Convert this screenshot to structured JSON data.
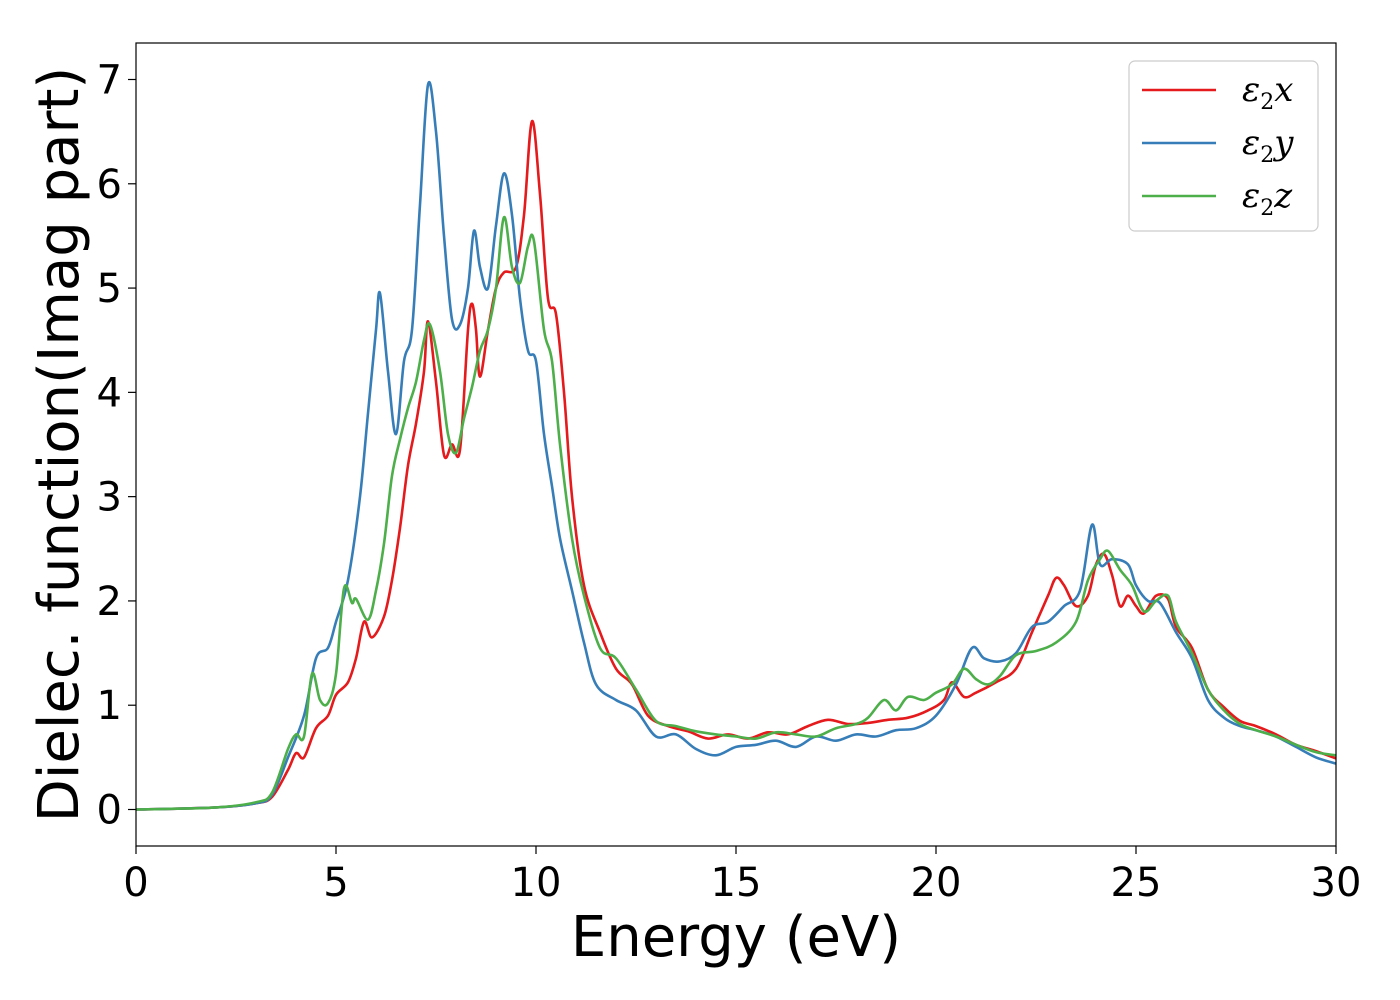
{
  "chart_data": {
    "type": "line",
    "title": "",
    "xlabel": "Energy (eV)",
    "ylabel": "Dielec. function(Imag part)",
    "xlim": [
      0,
      30
    ],
    "ylim": [
      -0.35,
      7.35
    ],
    "xticks": [
      0,
      5,
      10,
      15,
      20,
      25,
      30
    ],
    "yticks": [
      0,
      1,
      2,
      3,
      4,
      5,
      6,
      7
    ],
    "grid": false,
    "legend_position": "top-right",
    "series": [
      {
        "name": "ε₂x",
        "legend_symbol": "ε",
        "legend_sub": "2",
        "legend_suffix": "x",
        "color": "#e41a1c",
        "points": [
          [
            0,
            0
          ],
          [
            2,
            0.02
          ],
          [
            3,
            0.06
          ],
          [
            3.4,
            0.12
          ],
          [
            3.8,
            0.38
          ],
          [
            4.0,
            0.54
          ],
          [
            4.2,
            0.5
          ],
          [
            4.5,
            0.78
          ],
          [
            4.8,
            0.9
          ],
          [
            5.0,
            1.1
          ],
          [
            5.3,
            1.22
          ],
          [
            5.5,
            1.45
          ],
          [
            5.7,
            1.8
          ],
          [
            5.9,
            1.65
          ],
          [
            6.2,
            1.85
          ],
          [
            6.4,
            2.2
          ],
          [
            6.6,
            2.7
          ],
          [
            6.8,
            3.3
          ],
          [
            7.0,
            3.7
          ],
          [
            7.2,
            4.2
          ],
          [
            7.3,
            4.68
          ],
          [
            7.5,
            4.1
          ],
          [
            7.7,
            3.4
          ],
          [
            7.9,
            3.5
          ],
          [
            8.1,
            3.45
          ],
          [
            8.3,
            4.6
          ],
          [
            8.4,
            4.85
          ],
          [
            8.5,
            4.6
          ],
          [
            8.6,
            4.15
          ],
          [
            8.8,
            4.6
          ],
          [
            9.0,
            5.0
          ],
          [
            9.2,
            5.15
          ],
          [
            9.5,
            5.2
          ],
          [
            9.7,
            5.7
          ],
          [
            9.9,
            6.6
          ],
          [
            10.1,
            5.9
          ],
          [
            10.3,
            4.9
          ],
          [
            10.5,
            4.75
          ],
          [
            10.7,
            4.0
          ],
          [
            10.9,
            3.0
          ],
          [
            11.2,
            2.15
          ],
          [
            11.6,
            1.7
          ],
          [
            12.0,
            1.35
          ],
          [
            12.4,
            1.2
          ],
          [
            12.8,
            0.9
          ],
          [
            13.3,
            0.8
          ],
          [
            13.8,
            0.75
          ],
          [
            14.3,
            0.68
          ],
          [
            14.8,
            0.72
          ],
          [
            15.3,
            0.68
          ],
          [
            15.8,
            0.74
          ],
          [
            16.3,
            0.72
          ],
          [
            16.8,
            0.8
          ],
          [
            17.3,
            0.86
          ],
          [
            17.8,
            0.82
          ],
          [
            18.3,
            0.83
          ],
          [
            18.8,
            0.86
          ],
          [
            19.3,
            0.88
          ],
          [
            19.8,
            0.95
          ],
          [
            20.2,
            1.05
          ],
          [
            20.4,
            1.22
          ],
          [
            20.7,
            1.08
          ],
          [
            21.0,
            1.12
          ],
          [
            21.5,
            1.22
          ],
          [
            22.0,
            1.35
          ],
          [
            22.4,
            1.7
          ],
          [
            22.8,
            2.05
          ],
          [
            23.0,
            2.22
          ],
          [
            23.2,
            2.15
          ],
          [
            23.5,
            1.95
          ],
          [
            23.8,
            2.05
          ],
          [
            24.0,
            2.35
          ],
          [
            24.2,
            2.45
          ],
          [
            24.4,
            2.25
          ],
          [
            24.6,
            1.95
          ],
          [
            24.8,
            2.05
          ],
          [
            25.0,
            1.95
          ],
          [
            25.2,
            1.88
          ],
          [
            25.5,
            2.05
          ],
          [
            25.8,
            2.02
          ],
          [
            26.0,
            1.75
          ],
          [
            26.4,
            1.55
          ],
          [
            26.8,
            1.15
          ],
          [
            27.2,
            0.98
          ],
          [
            27.6,
            0.85
          ],
          [
            28.0,
            0.8
          ],
          [
            28.5,
            0.72
          ],
          [
            29.0,
            0.62
          ],
          [
            29.5,
            0.56
          ],
          [
            30.0,
            0.49
          ]
        ]
      },
      {
        "name": "ε₂y",
        "legend_symbol": "ε",
        "legend_sub": "2",
        "legend_suffix": "y",
        "color": "#377eb8",
        "points": [
          [
            0,
            0
          ],
          [
            2,
            0.02
          ],
          [
            3,
            0.06
          ],
          [
            3.4,
            0.14
          ],
          [
            3.8,
            0.5
          ],
          [
            4.2,
            0.9
          ],
          [
            4.5,
            1.45
          ],
          [
            4.8,
            1.55
          ],
          [
            5.0,
            1.8
          ],
          [
            5.3,
            2.2
          ],
          [
            5.6,
            3.0
          ],
          [
            5.8,
            3.8
          ],
          [
            6.0,
            4.6
          ],
          [
            6.1,
            4.95
          ],
          [
            6.3,
            4.2
          ],
          [
            6.5,
            3.6
          ],
          [
            6.7,
            4.3
          ],
          [
            6.9,
            4.6
          ],
          [
            7.1,
            5.8
          ],
          [
            7.3,
            6.95
          ],
          [
            7.5,
            6.5
          ],
          [
            7.7,
            5.5
          ],
          [
            7.9,
            4.7
          ],
          [
            8.1,
            4.65
          ],
          [
            8.3,
            5.0
          ],
          [
            8.45,
            5.55
          ],
          [
            8.6,
            5.2
          ],
          [
            8.8,
            5.0
          ],
          [
            9.0,
            5.6
          ],
          [
            9.2,
            6.1
          ],
          [
            9.4,
            5.7
          ],
          [
            9.6,
            4.9
          ],
          [
            9.8,
            4.4
          ],
          [
            10.0,
            4.3
          ],
          [
            10.2,
            3.6
          ],
          [
            10.4,
            3.1
          ],
          [
            10.6,
            2.6
          ],
          [
            10.9,
            2.1
          ],
          [
            11.2,
            1.6
          ],
          [
            11.5,
            1.2
          ],
          [
            12.0,
            1.05
          ],
          [
            12.5,
            0.95
          ],
          [
            13.0,
            0.7
          ],
          [
            13.5,
            0.72
          ],
          [
            14.0,
            0.58
          ],
          [
            14.5,
            0.52
          ],
          [
            15.0,
            0.6
          ],
          [
            15.5,
            0.62
          ],
          [
            16.0,
            0.66
          ],
          [
            16.5,
            0.6
          ],
          [
            17.0,
            0.7
          ],
          [
            17.5,
            0.66
          ],
          [
            18.0,
            0.72
          ],
          [
            18.5,
            0.7
          ],
          [
            19.0,
            0.76
          ],
          [
            19.5,
            0.78
          ],
          [
            20.0,
            0.9
          ],
          [
            20.5,
            1.2
          ],
          [
            20.9,
            1.55
          ],
          [
            21.2,
            1.45
          ],
          [
            21.6,
            1.42
          ],
          [
            22.0,
            1.5
          ],
          [
            22.4,
            1.75
          ],
          [
            22.8,
            1.8
          ],
          [
            23.2,
            1.95
          ],
          [
            23.6,
            2.1
          ],
          [
            23.9,
            2.73
          ],
          [
            24.1,
            2.35
          ],
          [
            24.4,
            2.4
          ],
          [
            24.8,
            2.35
          ],
          [
            25.0,
            2.15
          ],
          [
            25.3,
            2.0
          ],
          [
            25.6,
            1.98
          ],
          [
            26.0,
            1.7
          ],
          [
            26.4,
            1.45
          ],
          [
            26.8,
            1.05
          ],
          [
            27.2,
            0.88
          ],
          [
            27.6,
            0.8
          ],
          [
            28.0,
            0.76
          ],
          [
            28.5,
            0.7
          ],
          [
            29.0,
            0.6
          ],
          [
            29.5,
            0.5
          ],
          [
            30.0,
            0.44
          ]
        ]
      },
      {
        "name": "ε₂z",
        "legend_symbol": "ε",
        "legend_sub": "2",
        "legend_suffix": "z",
        "color": "#4daf4a",
        "points": [
          [
            0,
            0
          ],
          [
            2,
            0.02
          ],
          [
            3,
            0.07
          ],
          [
            3.4,
            0.16
          ],
          [
            3.8,
            0.58
          ],
          [
            4.0,
            0.72
          ],
          [
            4.2,
            0.7
          ],
          [
            4.4,
            1.3
          ],
          [
            4.6,
            1.05
          ],
          [
            4.8,
            1.02
          ],
          [
            5.0,
            1.3
          ],
          [
            5.2,
            2.12
          ],
          [
            5.4,
            1.98
          ],
          [
            5.5,
            2.02
          ],
          [
            5.8,
            1.82
          ],
          [
            6.0,
            2.1
          ],
          [
            6.2,
            2.55
          ],
          [
            6.4,
            3.2
          ],
          [
            6.6,
            3.55
          ],
          [
            6.8,
            3.85
          ],
          [
            7.0,
            4.1
          ],
          [
            7.2,
            4.5
          ],
          [
            7.35,
            4.65
          ],
          [
            7.6,
            4.2
          ],
          [
            7.8,
            3.6
          ],
          [
            8.0,
            3.42
          ],
          [
            8.2,
            3.75
          ],
          [
            8.4,
            4.05
          ],
          [
            8.6,
            4.4
          ],
          [
            8.8,
            4.6
          ],
          [
            9.0,
            5.0
          ],
          [
            9.2,
            5.68
          ],
          [
            9.4,
            5.2
          ],
          [
            9.6,
            5.05
          ],
          [
            9.8,
            5.4
          ],
          [
            9.95,
            5.45
          ],
          [
            10.2,
            4.6
          ],
          [
            10.4,
            4.3
          ],
          [
            10.6,
            3.5
          ],
          [
            10.9,
            2.6
          ],
          [
            11.2,
            2.05
          ],
          [
            11.6,
            1.55
          ],
          [
            12.0,
            1.45
          ],
          [
            12.5,
            1.15
          ],
          [
            13.0,
            0.85
          ],
          [
            13.5,
            0.8
          ],
          [
            14.0,
            0.75
          ],
          [
            14.5,
            0.72
          ],
          [
            15.0,
            0.7
          ],
          [
            15.5,
            0.68
          ],
          [
            16.0,
            0.74
          ],
          [
            16.5,
            0.72
          ],
          [
            17.0,
            0.7
          ],
          [
            17.5,
            0.78
          ],
          [
            18.0,
            0.82
          ],
          [
            18.3,
            0.88
          ],
          [
            18.7,
            1.05
          ],
          [
            19.0,
            0.95
          ],
          [
            19.3,
            1.08
          ],
          [
            19.7,
            1.05
          ],
          [
            20.0,
            1.12
          ],
          [
            20.4,
            1.2
          ],
          [
            20.7,
            1.35
          ],
          [
            21.0,
            1.25
          ],
          [
            21.3,
            1.2
          ],
          [
            21.6,
            1.28
          ],
          [
            22.0,
            1.48
          ],
          [
            22.5,
            1.52
          ],
          [
            23.0,
            1.6
          ],
          [
            23.5,
            1.8
          ],
          [
            23.8,
            2.2
          ],
          [
            24.1,
            2.4
          ],
          [
            24.3,
            2.48
          ],
          [
            24.6,
            2.3
          ],
          [
            24.9,
            2.15
          ],
          [
            25.2,
            1.9
          ],
          [
            25.5,
            2.0
          ],
          [
            25.8,
            2.05
          ],
          [
            26.0,
            1.8
          ],
          [
            26.4,
            1.5
          ],
          [
            26.8,
            1.15
          ],
          [
            27.2,
            0.95
          ],
          [
            27.6,
            0.82
          ],
          [
            28.0,
            0.76
          ],
          [
            28.5,
            0.7
          ],
          [
            29.0,
            0.62
          ],
          [
            29.5,
            0.55
          ],
          [
            30.0,
            0.52
          ]
        ]
      }
    ]
  }
}
